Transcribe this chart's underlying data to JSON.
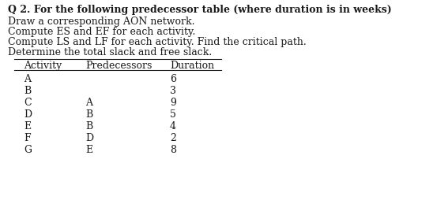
{
  "title": "Q 2. For the following predecessor table (where duration is in weeks)",
  "instructions": [
    "Draw a corresponding AON network.",
    "Compute ES and EF for each activity.",
    "Compute LS and LF for each activity. Find the critical path.",
    "Determine the total slack and free slack."
  ],
  "col_headers": [
    "Activity",
    "Predecessors",
    "Duration"
  ],
  "rows": [
    [
      "A",
      "",
      "6"
    ],
    [
      "B",
      "",
      "3"
    ],
    [
      "C",
      "A",
      "9"
    ],
    [
      "D",
      "B",
      "5"
    ],
    [
      "E",
      "B",
      "4"
    ],
    [
      "F",
      "D",
      "2"
    ],
    [
      "G",
      "E",
      "8"
    ]
  ],
  "background_color": "#ffffff",
  "text_color": "#1a1a1a",
  "title_fontsize": 9.0,
  "body_fontsize": 9.0,
  "header_fontsize": 9.0
}
